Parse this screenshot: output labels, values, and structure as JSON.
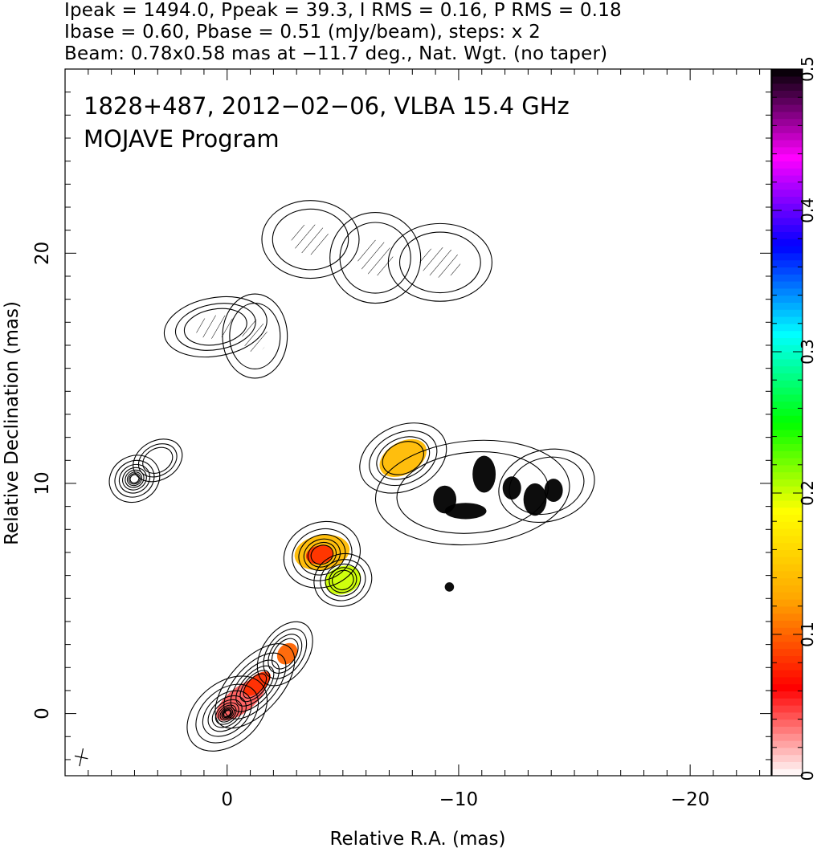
{
  "header": {
    "line1": "Ipeak = 1494.0, Ppeak = 39.3, I RMS = 0.16, P RMS = 0.18",
    "line2": "Ibase = 0.60, Pbase = 0.51 (mJy/beam), steps: x 2",
    "line3": "Beam: 0.78x0.58 mas at −11.7 deg., Nat. Wgt. (no taper)"
  },
  "chart_data": {
    "type": "heatmap",
    "title": "1828+487, 2012−02−06, VLBA 15.4 GHz",
    "subtitle": "MOJAVE Program",
    "xlabel": "Relative R.A. (mas)",
    "ylabel": "Relative Declination (mas)",
    "xlim": [
      7.0,
      -23.5
    ],
    "ylim": [
      -2.7,
      28.0
    ],
    "x_ticks": [
      0,
      -10,
      -20
    ],
    "x_tick_labels": [
      "0",
      "−10",
      "−20"
    ],
    "y_ticks": [
      0,
      10,
      20
    ],
    "y_tick_labels": [
      "0",
      "10",
      "20"
    ],
    "colorbar": {
      "range": [
        0,
        0.5
      ],
      "ticks": [
        0,
        0.1,
        0.2,
        0.3,
        0.4,
        0.5
      ],
      "tick_labels": [
        "0",
        "0.1",
        "0.2",
        "0.3",
        "0.4",
        "0.5"
      ],
      "colors": [
        "#ffffff",
        "#ff0000",
        "#ffa500",
        "#ffff00",
        "#00ff00",
        "#00ffff",
        "#0000ff",
        "#ff00ff",
        "#000000"
      ]
    },
    "grid": false,
    "legend": "none",
    "contour_components": [
      {
        "x": 0.0,
        "y": 0.0,
        "rx": 1.4,
        "ry": 0.95,
        "angle": -40,
        "levels": 11
      },
      {
        "x": -1.2,
        "y": 1.2,
        "rx": 1.6,
        "ry": 0.8,
        "angle": -48,
        "levels": 6
      },
      {
        "x": -2.5,
        "y": 2.6,
        "rx": 1.1,
        "ry": 0.7,
        "angle": -55,
        "levels": 4
      },
      {
        "x": -4.1,
        "y": 6.9,
        "rx": 1.2,
        "ry": 1.0,
        "angle": -20,
        "levels": 6
      },
      {
        "x": -5.0,
        "y": 5.8,
        "rx": 0.9,
        "ry": 0.8,
        "angle": -20,
        "levels": 5
      },
      {
        "x": -7.6,
        "y": 11.1,
        "rx": 1.4,
        "ry": 1.0,
        "angle": -25,
        "levels": 4
      },
      {
        "x": -10.6,
        "y": 9.6,
        "rx": 3.0,
        "ry": 1.6,
        "angle": -5,
        "levels": 2
      },
      {
        "x": -13.8,
        "y": 9.9,
        "rx": 1.5,
        "ry": 1.1,
        "angle": -15,
        "levels": 2
      },
      {
        "x": 4.0,
        "y": 10.2,
        "rx": 0.8,
        "ry": 0.7,
        "angle": -30,
        "levels": 8
      },
      {
        "x": 3.0,
        "y": 11.0,
        "rx": 0.8,
        "ry": 0.6,
        "angle": -30,
        "levels": 3
      },
      {
        "x": 0.5,
        "y": 16.8,
        "rx": 1.6,
        "ry": 0.9,
        "angle": -10,
        "levels": 3
      },
      {
        "x": -1.2,
        "y": 16.4,
        "rx": 1.0,
        "ry": 1.3,
        "angle": 0,
        "levels": 2
      },
      {
        "x": -3.6,
        "y": 20.6,
        "rx": 1.5,
        "ry": 1.2,
        "angle": 0,
        "levels": 2
      },
      {
        "x": -6.4,
        "y": 19.8,
        "rx": 1.4,
        "ry": 1.4,
        "angle": 0,
        "levels": 2
      },
      {
        "x": -9.2,
        "y": 19.6,
        "rx": 1.6,
        "ry": 1.2,
        "angle": 0,
        "levels": 2
      }
    ],
    "polarization_blobs": [
      {
        "x": -0.6,
        "y": 0.6,
        "rx": 1.3,
        "ry": 0.55,
        "angle": -38,
        "level": 0.04
      },
      {
        "x": -1.3,
        "y": 1.3,
        "rx": 0.7,
        "ry": 0.35,
        "angle": -40,
        "level": 0.08
      },
      {
        "x": -2.6,
        "y": 2.6,
        "rx": 0.5,
        "ry": 0.4,
        "angle": -50,
        "level": 0.1
      },
      {
        "x": -4.1,
        "y": 7.0,
        "rx": 1.2,
        "ry": 0.75,
        "angle": -10,
        "level": 0.14
      },
      {
        "x": -4.0,
        "y": 6.9,
        "rx": 0.6,
        "ry": 0.4,
        "angle": -10,
        "level": 0.08
      },
      {
        "x": -5.0,
        "y": 5.8,
        "rx": 0.8,
        "ry": 0.6,
        "angle": -20,
        "level": 0.2
      },
      {
        "x": -7.6,
        "y": 11.1,
        "rx": 1.1,
        "ry": 0.7,
        "angle": -30,
        "level": 0.14
      },
      {
        "x": -9.4,
        "y": 9.3,
        "rx": 0.5,
        "ry": 0.6,
        "angle": 0,
        "level": 0.5
      },
      {
        "x": -10.3,
        "y": 8.8,
        "rx": 0.9,
        "ry": 0.35,
        "angle": 0,
        "level": 0.5
      },
      {
        "x": -11.1,
        "y": 10.4,
        "rx": 0.5,
        "ry": 0.8,
        "angle": 0,
        "level": 0.5
      },
      {
        "x": -12.3,
        "y": 9.8,
        "rx": 0.4,
        "ry": 0.5,
        "angle": 0,
        "level": 0.5
      },
      {
        "x": -13.3,
        "y": 9.3,
        "rx": 0.5,
        "ry": 0.7,
        "angle": 0,
        "level": 0.5
      },
      {
        "x": -14.1,
        "y": 9.7,
        "rx": 0.4,
        "ry": 0.5,
        "angle": 0,
        "level": 0.5
      },
      {
        "x": -9.6,
        "y": 5.5,
        "rx": 0.2,
        "ry": 0.2,
        "angle": 0,
        "level": 0.5
      }
    ],
    "beam": {
      "x": 6.3,
      "y": -1.9,
      "major": 0.78,
      "minor": 0.58,
      "pa": -11.7
    }
  }
}
